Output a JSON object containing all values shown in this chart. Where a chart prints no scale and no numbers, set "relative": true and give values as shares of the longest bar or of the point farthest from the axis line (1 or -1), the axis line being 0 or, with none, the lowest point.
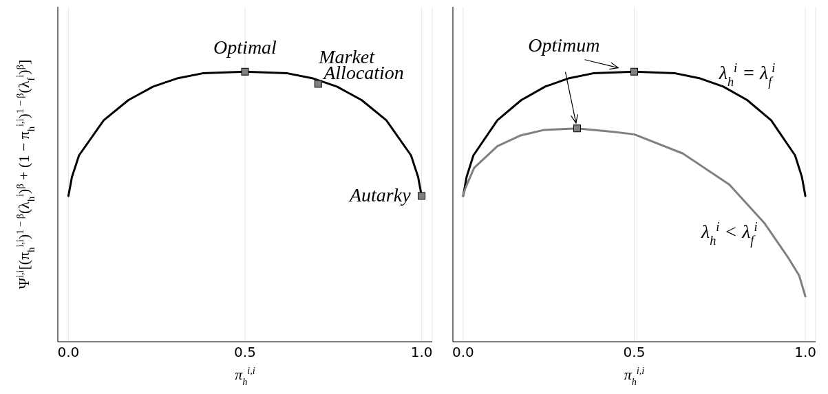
{
  "chart_data": [
    {
      "type": "line",
      "relative": true,
      "ylabel": "Ψ$^{i,i}$[(π$_{h}$$^{i,i}$)$^{1 − β}$(λ$_{h}$$^{i}$)$^{β}$ + (1 − π$_{h}$$^{i,i}$)$^{1 − β}$(λ$_{f}$$^{i}$)$^{β}$]",
      "xlabel": "π$_{h}$$^{i,i}$",
      "xlim": [
        -0.03,
        1.03
      ],
      "xticks": [
        {
          "value": 0,
          "label": "0.0"
        },
        {
          "value": 0.5,
          "label": "0.5"
        },
        {
          "value": 1,
          "label": "1.0"
        }
      ],
      "grid": "x",
      "annotations": [
        {
          "text": "Optimal",
          "x": 0.5,
          "y": 1
        },
        {
          "text": "Market Allocation",
          "x": 0.707,
          "y": 0.955
        },
        {
          "text": "Autarky",
          "x": 1,
          "y": 0.54
        }
      ],
      "series": [
        {
          "color": "#000000",
          "x": [
            0,
            0.01,
            0.03,
            0.1,
            0.17,
            0.24,
            0.31,
            0.38,
            0.5,
            0.62,
            0.69,
            0.76,
            0.83,
            0.9,
            0.97,
            0.99,
            1
          ],
          "values": [
            0.54,
            0.61,
            0.69,
            0.82,
            0.895,
            0.945,
            0.976,
            0.994,
            1,
            0.994,
            0.976,
            0.945,
            0.895,
            0.82,
            0.69,
            0.61,
            0.54
          ]
        },
        {
          "type": "scatter",
          "color": "#808080",
          "marker": "square",
          "x": [
            0.5,
            0.707,
            1
          ],
          "values": [
            1,
            0.955,
            0.54
          ]
        }
      ]
    },
    {
      "type": "line",
      "relative": true,
      "xlabel": "π$_{h}$$^{i,i}$",
      "xlim": [
        -0.03,
        1.03
      ],
      "xticks": [
        {
          "value": 0,
          "label": "0.0"
        },
        {
          "value": 0.5,
          "label": "0.5"
        },
        {
          "value": 1,
          "label": "1.0"
        }
      ],
      "grid": "x",
      "annotations": [
        {
          "text": "Optimum",
          "x": 0.333,
          "y": 0.79
        }
      ],
      "series": [
        {
          "name": "λ$_{h}$$^{i}$ = λ$_{f}$$^{i}$",
          "color": "#000000",
          "x": [
            0,
            0.01,
            0.03,
            0.1,
            0.17,
            0.24,
            0.31,
            0.38,
            0.5,
            0.62,
            0.69,
            0.76,
            0.83,
            0.9,
            0.97,
            0.99,
            1
          ],
          "values": [
            0.54,
            0.61,
            0.69,
            0.82,
            0.895,
            0.945,
            0.976,
            0.994,
            1,
            0.994,
            0.976,
            0.945,
            0.895,
            0.82,
            0.69,
            0.61,
            0.54
          ]
        },
        {
          "name": "λ$_{h}$$^{i}$ < λ$_{f}$$^{i}$",
          "color": "#808080",
          "x": [
            0,
            0.005,
            0.032,
            0.1,
            0.168,
            0.235,
            0.333,
            0.439,
            0.5,
            0.642,
            0.778,
            0.88,
            0.948,
            0.982,
            1
          ],
          "values": [
            0.54,
            0.564,
            0.644,
            0.724,
            0.764,
            0.784,
            0.79,
            0.777,
            0.768,
            0.697,
            0.582,
            0.44,
            0.315,
            0.245,
            0.168
          ]
        },
        {
          "type": "scatter",
          "color": "#808080",
          "marker": "square",
          "x": [
            0.5,
            0.333
          ],
          "values": [
            1,
            0.79
          ]
        }
      ]
    }
  ]
}
